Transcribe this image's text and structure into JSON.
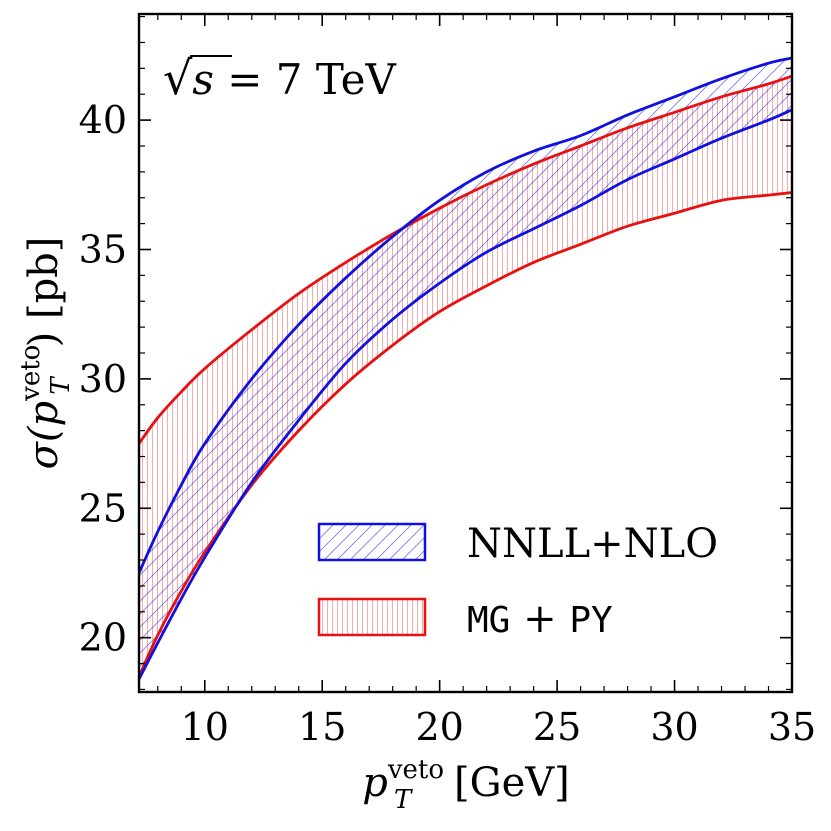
{
  "chart_data": {
    "type": "area",
    "title": "",
    "annotation": {
      "sqrt": "√",
      "var": "s",
      "rest": " = 7 TeV"
    },
    "xlabel": {
      "main": "p",
      "sub": "T",
      "sup": "veto",
      "unit": " [GeV]"
    },
    "ylabel": {
      "main": "σ(p",
      "sub": "T",
      "sup": "veto",
      "unit": ") [pb]"
    },
    "xlim": [
      7.2,
      35
    ],
    "ylim": [
      17.9,
      44.1
    ],
    "xticks": [
      10,
      15,
      20,
      25,
      30,
      35
    ],
    "yticks": [
      20,
      25,
      30,
      35,
      40
    ],
    "legend_position": "lower-right",
    "colors": {
      "nnll": "#1010e0",
      "mg": "#e81010"
    },
    "series": [
      {
        "name": "NNLL+NLO",
        "color": "#1010e0",
        "hatch": "diagonal",
        "x": [
          7.2,
          8,
          9,
          10,
          12,
          14,
          16,
          18,
          20,
          22,
          24,
          26,
          28,
          30,
          32,
          34,
          35
        ],
        "upper": [
          22.5,
          24.1,
          25.9,
          27.5,
          30.0,
          32.1,
          33.9,
          35.5,
          36.9,
          38.0,
          38.8,
          39.4,
          40.2,
          40.9,
          41.6,
          42.2,
          42.4
        ],
        "lower": [
          18.4,
          19.8,
          21.5,
          23.1,
          26.0,
          28.4,
          30.6,
          32.3,
          33.7,
          34.9,
          35.8,
          36.7,
          37.7,
          38.5,
          39.3,
          40.0,
          40.4
        ]
      },
      {
        "name": "MG + PY",
        "label_parts": [
          "MG",
          " + ",
          "PY"
        ],
        "color": "#e81010",
        "hatch": "vertical",
        "x": [
          7.2,
          8,
          9,
          10,
          12,
          14,
          16,
          18,
          20,
          22,
          24,
          26,
          28,
          30,
          32,
          34,
          35
        ],
        "upper": [
          27.5,
          28.5,
          29.5,
          30.4,
          31.9,
          33.3,
          34.5,
          35.6,
          36.6,
          37.5,
          38.3,
          39.0,
          39.7,
          40.3,
          40.9,
          41.4,
          41.7
        ],
        "lower": [
          18.5,
          20.1,
          21.8,
          23.3,
          25.9,
          28.0,
          29.8,
          31.3,
          32.6,
          33.6,
          34.5,
          35.2,
          35.9,
          36.4,
          36.9,
          37.1,
          37.2
        ]
      }
    ]
  }
}
